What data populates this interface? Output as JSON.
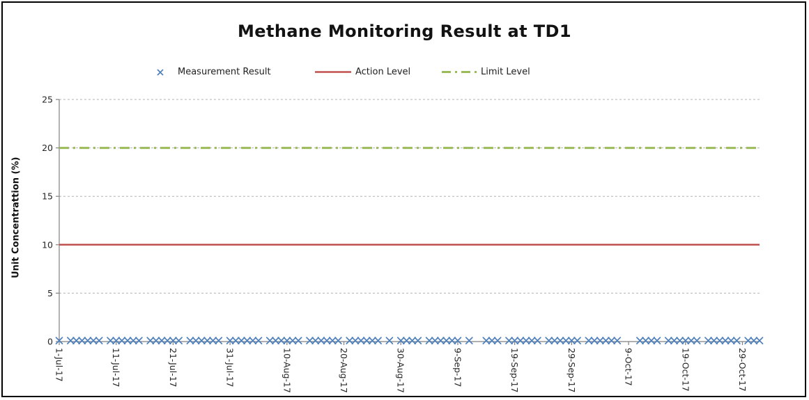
{
  "window": {
    "background": "#FFFFFF",
    "frame_border_color": "#000000"
  },
  "chart_data": {
    "type": "scatter",
    "title": "Methane Monitoring Result at TD1",
    "xlabel": "",
    "ylabel": "Unit Concentrattion (%)",
    "ylim": [
      0,
      25
    ],
    "yticks": [
      0,
      5,
      10,
      15,
      20,
      25
    ],
    "ytick_labels": [
      "0",
      "5",
      "10",
      "15",
      "20",
      "25"
    ],
    "xtick_labels": [
      "1-Jul-17",
      "11-Jul-17",
      "21-Jul-17",
      "31-Jul-17",
      "10-Aug-17",
      "20-Aug-17",
      "30-Aug-17",
      "9-Sep-17",
      "19-Sep-17",
      "29-Sep-17",
      "9-Oct-17",
      "19-Oct-17",
      "29-Oct-17"
    ],
    "xtick_day_offsets": [
      0,
      10,
      20,
      30,
      40,
      50,
      60,
      70,
      80,
      90,
      100,
      110,
      120
    ],
    "x_domain_days": [
      0,
      123
    ],
    "grid": "horizontal-dashed",
    "grid_color": "#B3B3B3",
    "axis_color": "#808080",
    "tick_label_color": "#262626",
    "legend_position": "top",
    "series": [
      {
        "name": "Measurement Result",
        "type": "scatter",
        "marker": "x",
        "color": "#4F81BD",
        "value": 0.1,
        "day_offsets": [
          0,
          2,
          3,
          4,
          5,
          6,
          7,
          9,
          10,
          11,
          12,
          13,
          14,
          16,
          17,
          18,
          19,
          20,
          21,
          23,
          24,
          25,
          26,
          27,
          28,
          30,
          31,
          32,
          33,
          34,
          35,
          37,
          38,
          39,
          40,
          41,
          42,
          44,
          45,
          46,
          47,
          48,
          49,
          51,
          52,
          53,
          54,
          55,
          56,
          58,
          60,
          61,
          62,
          63,
          65,
          66,
          67,
          68,
          69,
          70,
          72,
          75,
          76,
          77,
          79,
          80,
          81,
          82,
          83,
          84,
          86,
          87,
          88,
          89,
          90,
          91,
          93,
          94,
          95,
          96,
          97,
          98,
          102,
          103,
          104,
          105,
          107,
          108,
          109,
          110,
          111,
          112,
          114,
          115,
          116,
          117,
          118,
          119,
          121,
          122,
          123
        ]
      },
      {
        "name": "Action Level",
        "type": "line",
        "style": "solid",
        "color": "#C0504D",
        "value": 10
      },
      {
        "name": "Limit Level",
        "type": "line",
        "style": "dash-dot",
        "color": "#9BBB59",
        "value": 20
      }
    ]
  }
}
